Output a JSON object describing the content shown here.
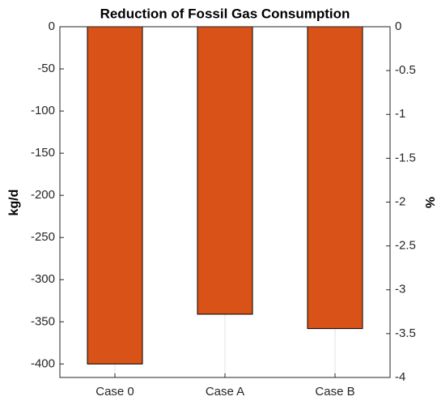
{
  "chart_data": {
    "type": "bar",
    "title": "Reduction of Fossil Gas Consumption",
    "categories": [
      "Case 0",
      "Case A",
      "Case B"
    ],
    "values": [
      -400,
      -341,
      -358
    ],
    "color": "#d95319",
    "ylabel": "kg/d",
    "ylim": [
      -416,
      0
    ],
    "yticks": [
      0,
      -50,
      -100,
      -150,
      -200,
      -250,
      -300,
      -350,
      -400
    ],
    "y2label": "%",
    "y2lim": [
      -4,
      0
    ],
    "y2ticks": [
      0,
      -0.5,
      -1,
      -1.5,
      -2,
      -2.5,
      -3,
      -3.5,
      -4
    ],
    "grid": "x"
  }
}
